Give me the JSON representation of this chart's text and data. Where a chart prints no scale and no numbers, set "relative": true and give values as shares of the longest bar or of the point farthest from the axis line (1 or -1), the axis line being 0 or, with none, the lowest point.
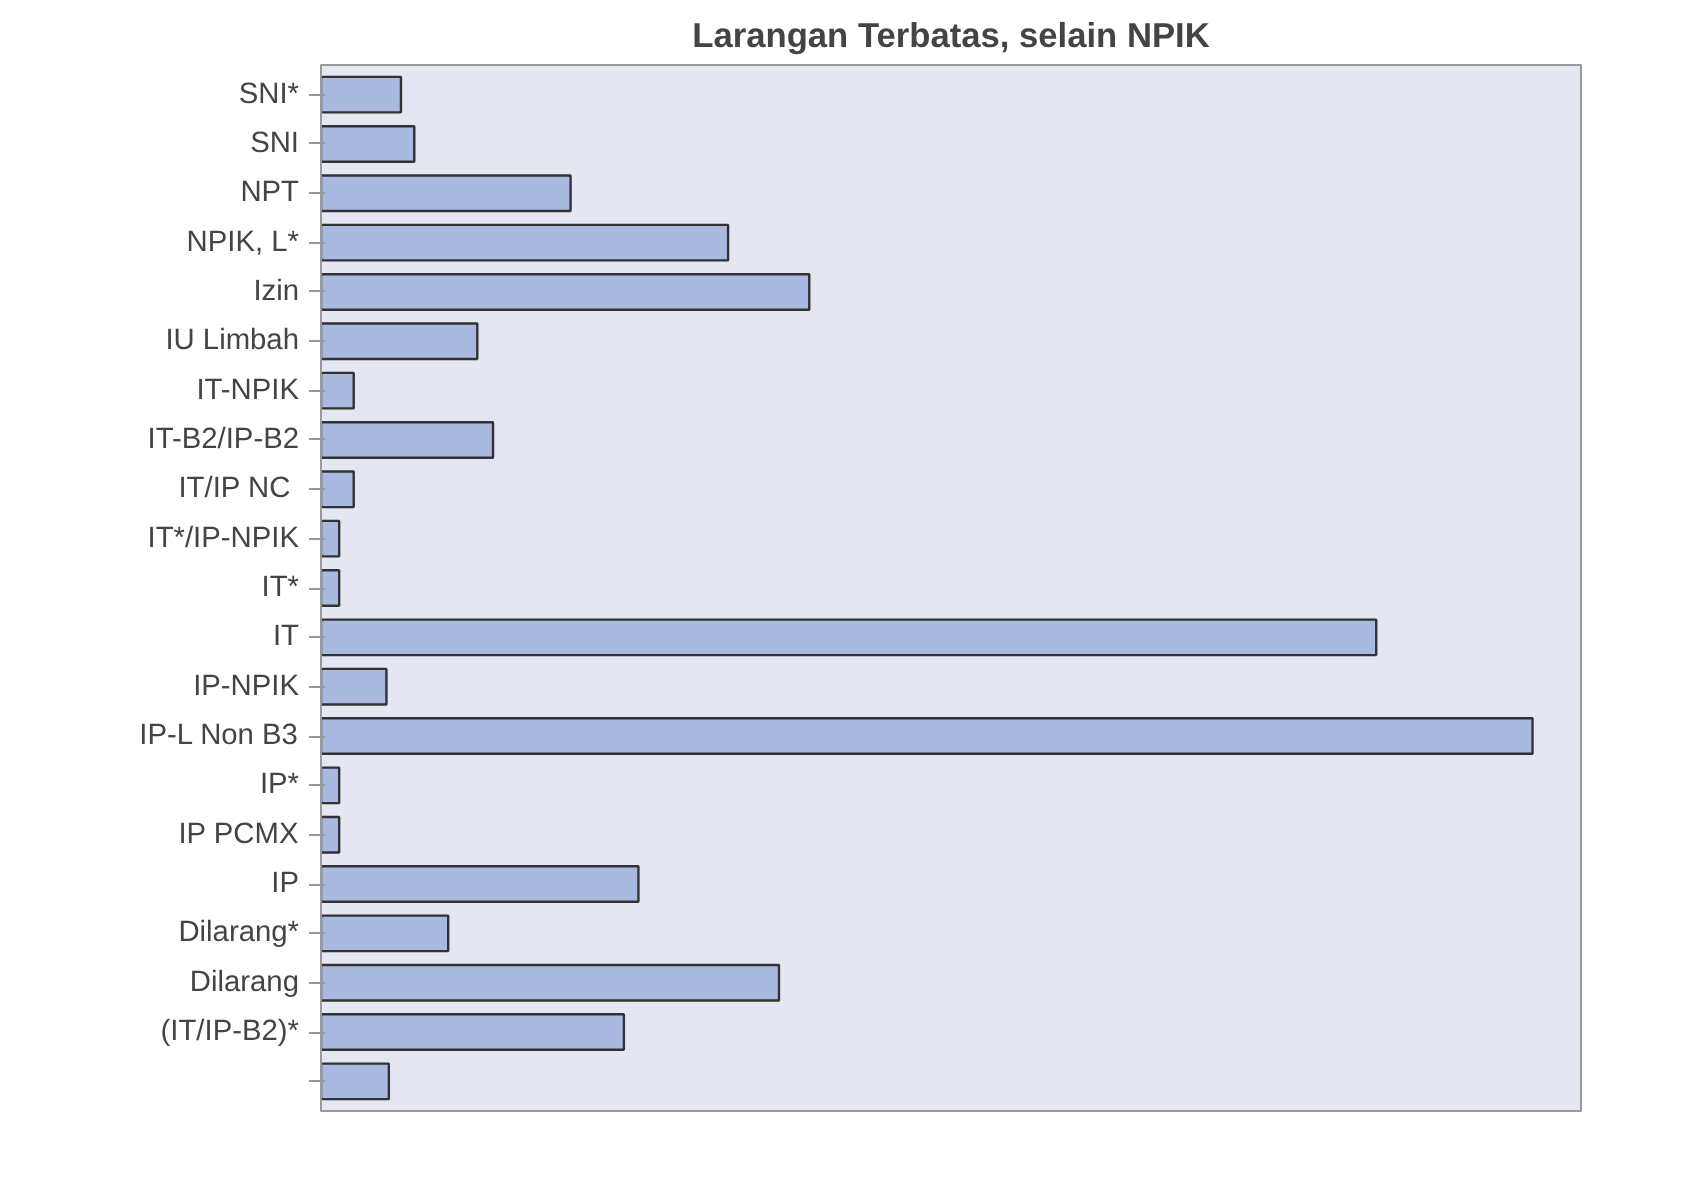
{
  "chart_data": {
    "type": "bar",
    "orientation": "horizontal",
    "relative": true,
    "title": "Larangan Terbatas, selain NPIK",
    "categories": [
      "SNI*",
      "SNI",
      "NPT",
      "NPIK, L*",
      "Izin",
      "IU Limbah",
      "IT-NPIK",
      "IT-B2/IP-B2",
      "IT/IP  NC",
      "IT*/IP-NPIK",
      "IT*",
      "IT",
      "IP-NPIK",
      "IP-L Non B3",
      "IP*",
      "IP PCMX",
      "IP",
      "Dilarang*",
      "Dilarang",
      "(IT/IP-B2)*",
      null
    ],
    "values": [
      0.066,
      0.077,
      0.206,
      0.336,
      0.403,
      0.129,
      0.027,
      0.142,
      0.027,
      0.015,
      0.015,
      0.871,
      0.054,
      1,
      0.015,
      0.015,
      0.262,
      0.105,
      0.378,
      0.25,
      0.056
    ],
    "color": "#a9b9e0"
  }
}
